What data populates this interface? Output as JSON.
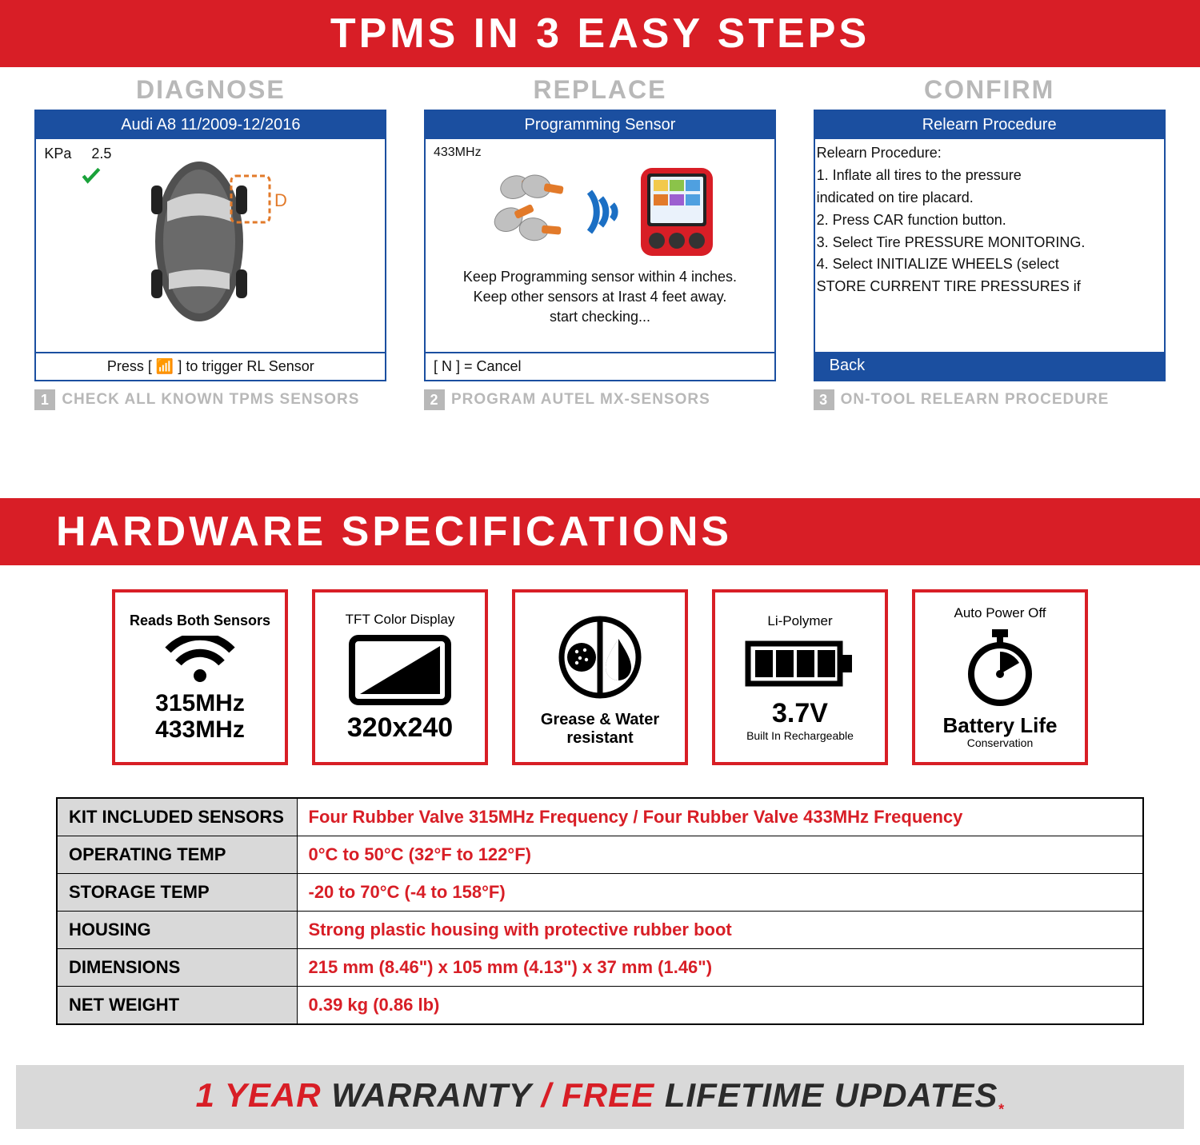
{
  "colors": {
    "red": "#d81e26",
    "blue": "#1b4fa0",
    "gray_text": "#b8b8b8",
    "table_label_bg": "#d9d9d9",
    "footer_bg": "#d9d9d9",
    "green_check": "#1aa23a",
    "orange": "#e27a2a"
  },
  "banner_top": "TPMS IN 3 EASY STEPS",
  "steps": {
    "diagnose": {
      "heading": "DIAGNOSE",
      "screen_title": "Audi A8 11/2009-12/2016",
      "kpa_label": "KPa",
      "kpa_value": "2.5",
      "d_label": "D",
      "footer": "Press [ 📶 ] to trigger RL Sensor",
      "caption_num": "1",
      "caption": "CHECK ALL KNOWN TPMS SENSORS"
    },
    "replace": {
      "heading": "REPLACE",
      "screen_title": "Programming Sensor",
      "freq": "433MHz",
      "body_line1": "Keep Programming sensor within 4 inches.",
      "body_line2": "Keep other sensors at Irast 4 feet away.",
      "body_line3": "start checking...",
      "footer": "[ N ] = Cancel",
      "caption_num": "2",
      "caption": "PROGRAM AUTEL MX-SENSORS"
    },
    "confirm": {
      "heading": "CONFIRM",
      "screen_title": "Relearn Procedure",
      "body_title": "Relearn Procedure:",
      "line1": "1. Inflate all tires to the pressure",
      "line1b": "indicated on tire placard.",
      "line2": "2. Press CAR function button.",
      "line3": "3. Select Tire PRESSURE MONITORING.",
      "line4": "4. Select INITIALIZE WHEELS (select",
      "line4b": "STORE CURRENT TIRE PRESSURES if",
      "footer": "Back",
      "caption_num": "3",
      "caption": "ON-TOOL RELEARN PROCEDURE"
    }
  },
  "banner_specs": "HARDWARE SPECIFICATIONS",
  "cards": {
    "sensors": {
      "top": "Reads Both Sensors",
      "l1": "315MHz",
      "l2": "433MHz"
    },
    "display": {
      "top": "TFT Color Display",
      "big": "320x240"
    },
    "resist": {
      "l1": "Grease & Water",
      "l2": "resistant"
    },
    "battery": {
      "top": "Li-Polymer",
      "big": "3.7V",
      "sub": "Built In Rechargeable"
    },
    "power": {
      "top": "Auto Power Off",
      "l1": "Battery Life",
      "l2": "Conservation"
    }
  },
  "spec_rows": [
    {
      "label": "KIT INCLUDED SENSORS",
      "value": "Four Rubber Valve 315MHz Frequency  /  Four Rubber Valve 433MHz Frequency"
    },
    {
      "label": "OPERATING TEMP",
      "value": "0°C to 50°C (32°F to 122°F)"
    },
    {
      "label": "STORAGE TEMP",
      "value": "-20 to 70°C (-4 to 158°F)"
    },
    {
      "label": "HOUSING",
      "value": "Strong plastic housing with protective rubber boot"
    },
    {
      "label": "DIMENSIONS",
      "value": "215 mm (8.46\") x 105 mm (4.13\") x 37 mm (1.46\")"
    },
    {
      "label": "NET WEIGHT",
      "value": "0.39 kg (0.86 lb)"
    }
  ],
  "footer": {
    "p1": "1 YEAR ",
    "p2": "WARRANTY",
    "p3": " / ",
    "p4": "FREE",
    "p5": " LIFETIME UPDATES",
    "asterisk": "*"
  }
}
